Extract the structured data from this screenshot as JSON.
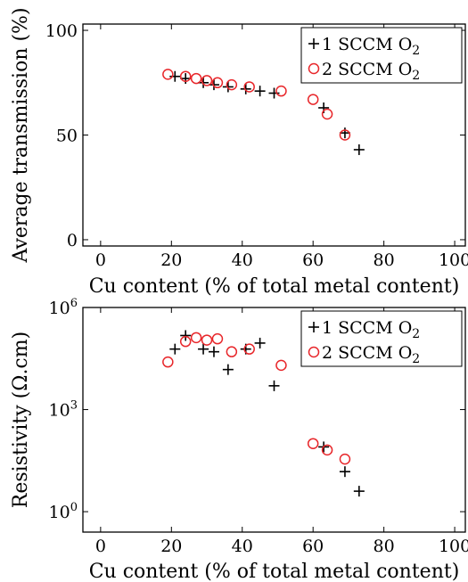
{
  "chart_data": [
    {
      "type": "scatter",
      "xlabel": "Cu content (% of total metal content)",
      "ylabel": "Average transmission (%)",
      "xlim": [
        -5,
        103
      ],
      "ylim": [
        -3,
        103
      ],
      "xticks": [
        0,
        20,
        40,
        60,
        80,
        100
      ],
      "xtick_labels": [
        "0",
        "20",
        "40",
        "60",
        "80",
        "100"
      ],
      "yticks": [
        0,
        50,
        100
      ],
      "ytick_labels": [
        "0",
        "50",
        "100"
      ],
      "yscale": "linear",
      "grid": false,
      "legend_position": "top-right",
      "series": [
        {
          "name": "1 SCCM O2",
          "marker": "plus",
          "color": "#000000",
          "x": [
            21,
            24,
            29,
            32,
            36,
            41,
            45,
            49,
            63,
            69,
            73
          ],
          "y": [
            78,
            77,
            75,
            74,
            73,
            72,
            71,
            70,
            63,
            51,
            43
          ]
        },
        {
          "name": "2 SCCM O2",
          "marker": "circle",
          "color": "#e8262a",
          "x": [
            19,
            24,
            27,
            30,
            33,
            37,
            42,
            51,
            60,
            64,
            69
          ],
          "y": [
            79,
            78,
            77,
            76,
            75,
            74,
            73,
            71,
            67,
            60,
            50
          ]
        }
      ]
    },
    {
      "type": "scatter",
      "xlabel": "Cu content (% of total metal content)",
      "ylabel": "Resistivity (Ω.cm)",
      "xlim": [
        -5,
        103
      ],
      "ylim_log10": [
        -0.6,
        6.0
      ],
      "xticks": [
        0,
        20,
        40,
        60,
        80,
        100
      ],
      "xtick_labels": [
        "0",
        "20",
        "40",
        "60",
        "80",
        "100"
      ],
      "yticks_log10": [
        0,
        3,
        6
      ],
      "ytick_labels": [
        "10^0",
        "10^3",
        "10^6"
      ],
      "yscale": "log",
      "grid": false,
      "legend_position": "top-right",
      "series": [
        {
          "name": "1 SCCM O2",
          "marker": "plus",
          "color": "#000000",
          "x": [
            21,
            24,
            29,
            32,
            36,
            41,
            45,
            49,
            63,
            69,
            73
          ],
          "y": [
            60000,
            150000,
            60000,
            50000,
            15000,
            60000,
            90000,
            5000,
            80,
            15,
            4
          ]
        },
        {
          "name": "2 SCCM O2",
          "marker": "circle",
          "color": "#e8262a",
          "x": [
            19,
            24,
            27,
            30,
            33,
            37,
            42,
            51,
            60,
            64,
            69
          ],
          "y": [
            25000,
            100000,
            130000,
            110000,
            120000,
            50000,
            60000,
            20000,
            100,
            65,
            35
          ]
        }
      ]
    }
  ]
}
